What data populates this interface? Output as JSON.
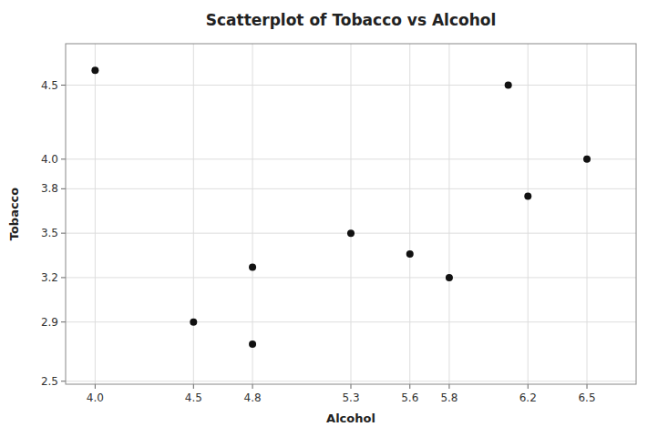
{
  "chart_data": {
    "type": "scatter",
    "title": "Scatterplot of Tobacco vs Alcohol",
    "xlabel": "Alcohol",
    "ylabel": "Tobacco",
    "x": [
      4.0,
      4.5,
      4.8,
      4.8,
      5.3,
      5.6,
      5.8,
      6.1,
      6.2,
      6.5
    ],
    "values": [
      4.6,
      2.9,
      2.75,
      3.27,
      3.5,
      3.36,
      3.2,
      4.5,
      3.75,
      4.0
    ],
    "color": "#111111",
    "xlim": [
      3.85,
      6.75
    ],
    "ylim": [
      2.48,
      4.78
    ],
    "xticks": [
      {
        "value": 4.0,
        "label": "4.0"
      },
      4.5,
      4.8,
      5.3,
      5.6,
      5.8,
      6.2,
      6.5
    ],
    "yticks": [
      2.5,
      2.9,
      3.2,
      3.5,
      3.8,
      {
        "value": 4.0,
        "label": "4.0"
      },
      4.5
    ],
    "grid": true
  }
}
